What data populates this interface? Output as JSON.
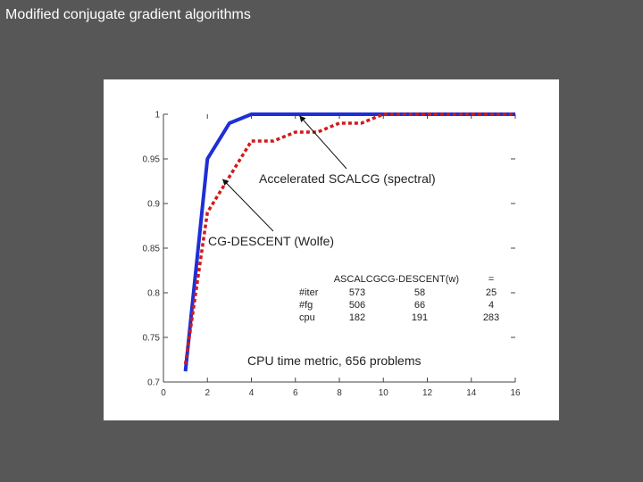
{
  "slide": {
    "title": "Modified conjugate gradient algorithms"
  },
  "chart_data": {
    "type": "line",
    "title": "",
    "xlabel": "",
    "ylabel": "",
    "xlim": [
      0,
      16
    ],
    "ylim": [
      0.7,
      1.0
    ],
    "xticks": [
      "0",
      "2",
      "4",
      "6",
      "8",
      "10",
      "12",
      "14",
      "16"
    ],
    "yticks": [
      "0.7",
      "0.75",
      "0.8",
      "0.85",
      "0.9",
      "0.95",
      "1"
    ],
    "grid": false,
    "series": [
      {
        "color": "#1f2fd6",
        "style": "solid",
        "x": [
          1,
          2,
          3,
          4,
          5,
          6,
          8,
          10,
          12,
          14,
          16
        ],
        "y": [
          0.712,
          0.95,
          0.99,
          1.0,
          1.0,
          1.0,
          1.0,
          1.0,
          1.0,
          1.0,
          1.0
        ]
      },
      {
        "color": "#d11a1a",
        "style": "dotted",
        "x": [
          1,
          2,
          3,
          4,
          5,
          6,
          7,
          8,
          9,
          10,
          12,
          14,
          16
        ],
        "y": [
          0.72,
          0.89,
          0.93,
          0.97,
          0.97,
          0.98,
          0.98,
          0.99,
          0.99,
          1.0,
          1.0,
          1.0,
          1.0
        ]
      }
    ],
    "annotations": [
      {
        "text": "Accelerated SCALCG (spectral)",
        "target_x": 6.2,
        "target_y": 1.0
      },
      {
        "text": "CG-DESCENT (Wolfe)",
        "target_x": 2.7,
        "target_y": 0.927
      }
    ],
    "table": {
      "headers": [
        "",
        "ASCALCG",
        "CG-DESCENT(w)",
        "="
      ],
      "rows": [
        [
          "#iter",
          "573",
          "58",
          "25"
        ],
        [
          "#fg",
          "506",
          "66",
          "4"
        ],
        [
          "cpu",
          "182",
          "191",
          "283"
        ]
      ]
    },
    "caption": "CPU time metric, 656 problems"
  }
}
